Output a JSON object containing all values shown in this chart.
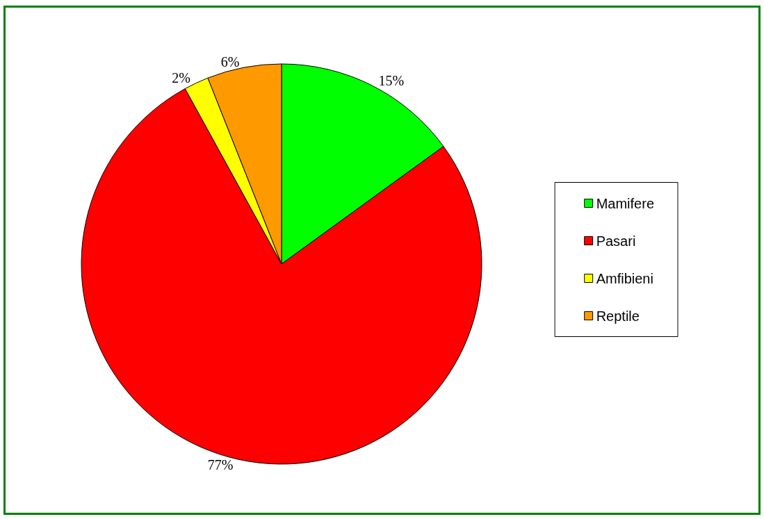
{
  "chart_data": {
    "type": "pie",
    "categories": [
      "Mamifere",
      "Pasari",
      "Amfibieni",
      "Reptile"
    ],
    "values": [
      15,
      77,
      2,
      6
    ],
    "colors": [
      "#00ff00",
      "#ff0000",
      "#ffff00",
      "#ff9900"
    ],
    "value_labels": [
      "15%",
      "77%",
      "2%",
      "6%"
    ],
    "legend": "right"
  }
}
